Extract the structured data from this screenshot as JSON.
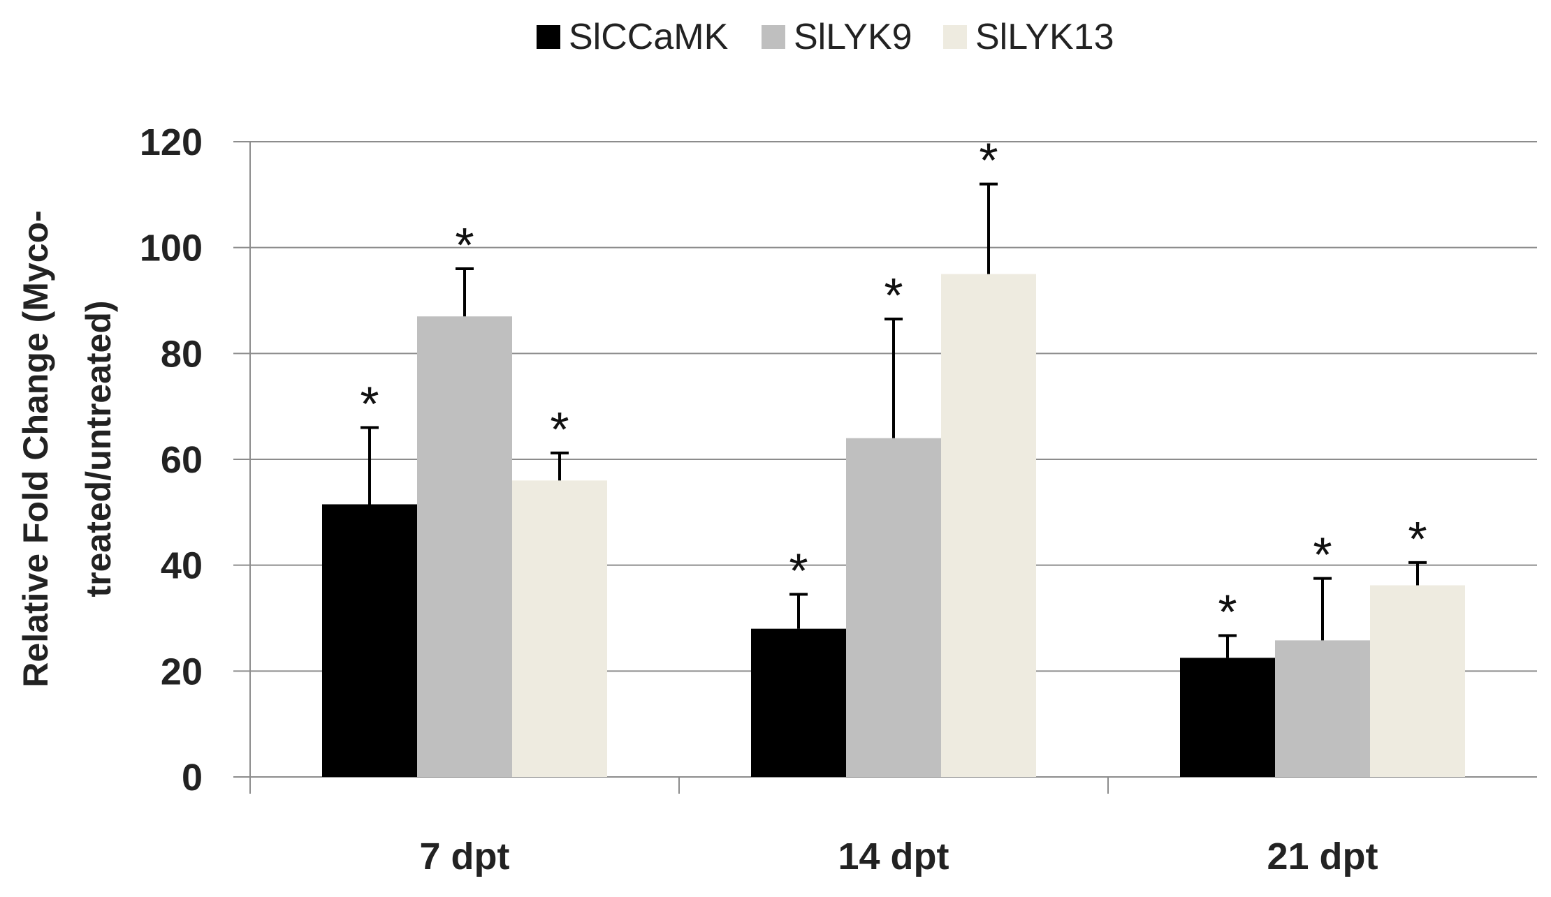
{
  "chart_data": {
    "type": "bar",
    "title": "",
    "xlabel": "",
    "ylabel_lines": [
      "Relative Fold Change (Myco-",
      "treated/untreated)"
    ],
    "categories": [
      "7 dpt",
      "14 dpt",
      "21 dpt"
    ],
    "ylim": [
      0,
      120
    ],
    "yticks": [
      0,
      20,
      40,
      60,
      80,
      100,
      120
    ],
    "grid": true,
    "legend_position": "top",
    "series": [
      {
        "name": "SlCCaMK",
        "color": "#000000",
        "values": [
          51.5,
          28,
          22.5
        ],
        "errors": [
          14.5,
          6.5,
          4.2
        ],
        "markers": [
          "*",
          "*",
          "*"
        ]
      },
      {
        "name": "SlLYK9",
        "color": "#bfbfbf",
        "values": [
          87,
          64,
          25.8
        ],
        "errors": [
          9,
          22.5,
          11.7
        ],
        "markers": [
          "*",
          "*",
          "*"
        ]
      },
      {
        "name": "SlLYK13",
        "color": "#eeebe0",
        "values": [
          56,
          95,
          36.2
        ],
        "errors": [
          5.2,
          17,
          4.3
        ],
        "markers": [
          "*",
          "*",
          "*"
        ]
      }
    ]
  }
}
